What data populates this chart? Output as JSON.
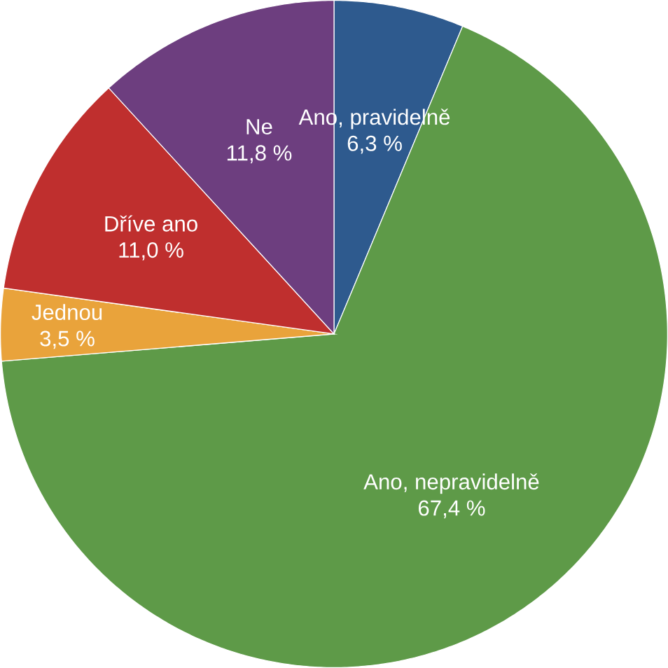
{
  "chart_data": {
    "type": "pie",
    "categories": [
      "Ano, pravidelně",
      "Ano, nepravidelně",
      "Jednou",
      "Dříve ano",
      "Ne"
    ],
    "values": [
      6.3,
      67.4,
      3.5,
      11.0,
      11.8
    ],
    "value_labels": [
      "6,3 %",
      "67,4 %",
      "3,5 %",
      "11,0 %",
      "11,8 %"
    ],
    "colors": [
      "#2e5a8e",
      "#5e9a48",
      "#e9a33b",
      "#bf2f2e",
      "#6d3e7f"
    ]
  }
}
